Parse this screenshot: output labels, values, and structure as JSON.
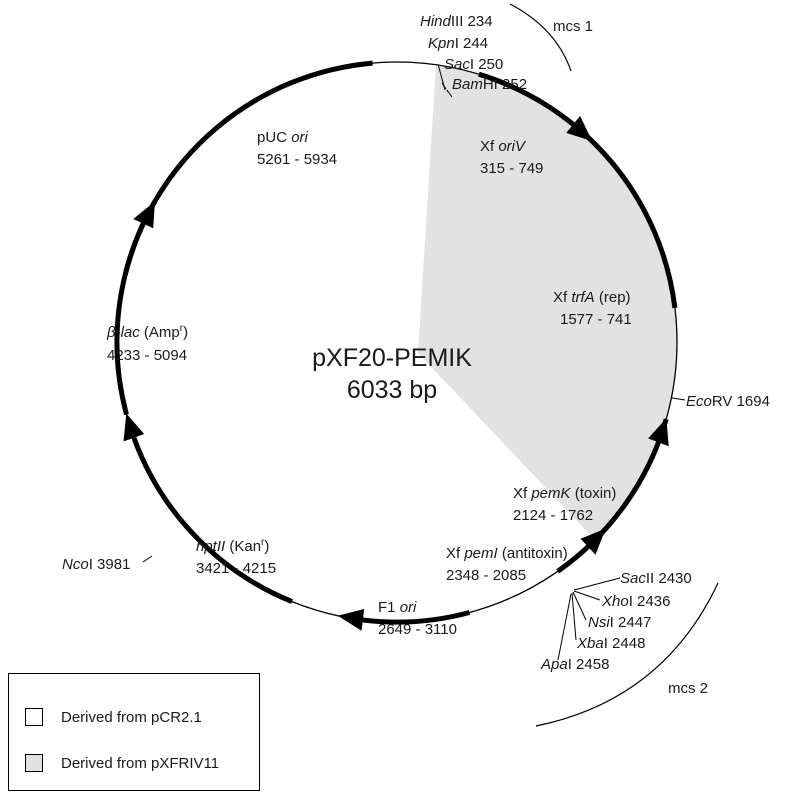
{
  "plasmid": {
    "name": "pXF20-PEMIK",
    "size": "6033 bp",
    "colors": {
      "pcr21_region": "#ffffff",
      "pxfriv11_region": "#e2e2e2",
      "line": "#000000"
    }
  },
  "sites": {
    "hindiii": {
      "it": "Hind",
      "rest": "III 234"
    },
    "kpni": {
      "it": "Kpn",
      "rest": "I 244"
    },
    "saci": {
      "it": "Sac",
      "rest": "I 250"
    },
    "bamhi": {
      "it": "Bam",
      "rest": "HI 252"
    },
    "ecorv": {
      "it": "Eco",
      "rest": "RV 1694"
    },
    "sacii": {
      "it": "Sac",
      "rest": "II 2430"
    },
    "xhoi": {
      "it": "Xho",
      "rest": "I 2436"
    },
    "nsii": {
      "it": "Nsi",
      "rest": "I 2447"
    },
    "xbai": {
      "it": "Xba",
      "rest": "I 2448"
    },
    "apai": {
      "it": "Apa",
      "rest": "I 2458"
    },
    "ncoi": {
      "it": "Nco",
      "rest": "I 3981"
    }
  },
  "mcs": {
    "mcs1": "mcs 1",
    "mcs2": "mcs 2"
  },
  "features": {
    "puc_ori": {
      "pre": "pUC ",
      "it": "ori",
      "range": "5261 - 5934"
    },
    "xf_oriv": {
      "pre": "Xf ",
      "it": "oriV",
      "range": "315 - 749"
    },
    "xf_trfa": {
      "pre": "Xf ",
      "it": "trfA",
      "post": " (rep)",
      "range": "1577 - 741"
    },
    "beta_lac": {
      "it": "β-lac",
      "post": " (Amp",
      "sup": "r",
      "close": ")",
      "range": "4233 - 5094"
    },
    "xf_pemk": {
      "pre": "Xf ",
      "it": "pemK",
      "post": " (toxin)",
      "range": "2124 - 1762"
    },
    "nptii": {
      "it": "nptII",
      "post": " (Kan",
      "sup": "r",
      "close": ")",
      "range": "3421 - 4215"
    },
    "xf_pemi": {
      "pre": "Xf ",
      "it": "pemI",
      "post": " (antitoxin)",
      "range": "2348 - 2085"
    },
    "f1_ori": {
      "pre": "F1 ",
      "it": "ori",
      "range": "2649 - 3110"
    }
  },
  "legend": [
    {
      "label": "Derived from pCR2.1",
      "color": "#ffffff"
    },
    {
      "label": "Derived from pXFRIV11",
      "color": "#e2e2e2"
    }
  ]
}
